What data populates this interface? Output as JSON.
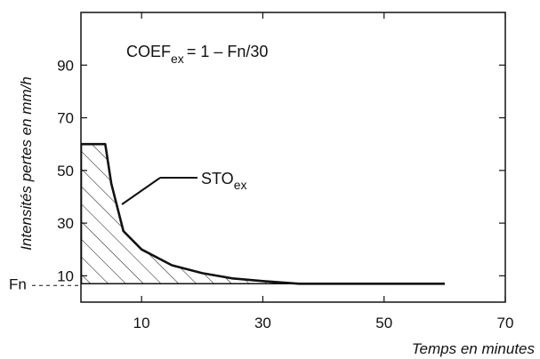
{
  "chart_data": {
    "type": "line",
    "title": "",
    "xlabel": "Temps en minutes",
    "ylabel": "Intensités pertes en mm/h",
    "xlim": [
      0,
      70
    ],
    "ylim": [
      0,
      110
    ],
    "x_ticks": [
      10,
      30,
      50,
      70
    ],
    "y_ticks": [
      10,
      30,
      50,
      70,
      90
    ],
    "grid": false,
    "series": [
      {
        "name": "STOex",
        "x": [
          0,
          4,
          5,
          7,
          10,
          15,
          20,
          25,
          30,
          36,
          60
        ],
        "y": [
          60,
          60,
          45,
          27,
          20,
          14,
          11,
          9,
          8,
          7,
          7
        ]
      }
    ],
    "fn_level": 7,
    "fn_label": "Fn",
    "hatched_area": "STOex minus Fn",
    "formula": {
      "lhs_main": "COEF",
      "lhs_sub": "ex",
      "rhs": "= 1 – Fn/30"
    },
    "curve_label": {
      "main": "STO",
      "sub": "ex"
    }
  }
}
